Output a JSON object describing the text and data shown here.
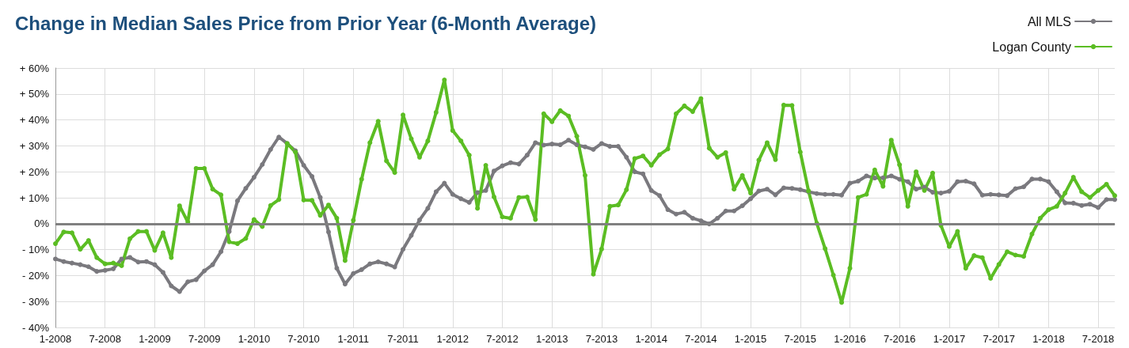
{
  "chart_data": {
    "type": "line",
    "title": "Change in Median Sales Price from Prior Year",
    "subtitle": "(6-Month Average)",
    "categories": [
      "1-2008",
      null,
      null,
      null,
      null,
      null,
      "7-2008",
      null,
      null,
      null,
      null,
      null,
      "1-2009",
      null,
      null,
      null,
      null,
      null,
      "7-2009",
      null,
      null,
      null,
      null,
      null,
      "1-2010",
      null,
      null,
      null,
      null,
      null,
      "7-2010",
      null,
      null,
      null,
      null,
      null,
      "1-2011",
      null,
      null,
      null,
      null,
      null,
      "7-2011",
      null,
      null,
      null,
      null,
      null,
      "1-2012",
      null,
      null,
      null,
      null,
      null,
      "7-2012",
      null,
      null,
      null,
      null,
      null,
      "1-2013",
      null,
      null,
      null,
      null,
      null,
      "7-2013",
      null,
      null,
      null,
      null,
      null,
      "1-2014",
      null,
      null,
      null,
      null,
      null,
      "7-2014",
      null,
      null,
      null,
      null,
      null,
      "1-2015",
      null,
      null,
      null,
      null,
      null,
      "7-2015",
      null,
      null,
      null,
      null,
      null,
      "1-2016",
      null,
      null,
      null,
      null,
      null,
      "7-2016",
      null,
      null,
      null,
      null,
      null,
      "1-2017",
      null,
      null,
      null,
      null,
      null,
      "7-2017",
      null,
      null,
      null,
      null,
      null,
      "1-2018",
      null,
      null,
      null,
      null,
      null,
      "7-2018",
      null,
      null
    ],
    "series": [
      {
        "name": "All MLS",
        "color": "#7a797e",
        "values": [
          -13.6,
          -14.6,
          -15.2,
          -15.8,
          -16.6,
          -18.4,
          -18,
          -17.4,
          -13.6,
          -13,
          -14.8,
          -14.6,
          -15.8,
          -18.8,
          -24,
          -26.2,
          -22.4,
          -21.6,
          -18.2,
          -15.8,
          -10.8,
          -3,
          8.8,
          13.6,
          17.9,
          22.8,
          28.6,
          33.4,
          30.9,
          28.1,
          22.5,
          18.2,
          10.1,
          -3.2,
          -17.2,
          -23.3,
          -19.2,
          -17.7,
          -15.5,
          -14.7,
          -15.5,
          -16.7,
          -9.9,
          -4.5,
          1.4,
          5.9,
          12.3,
          15.6,
          11.3,
          9.6,
          8.2,
          12,
          12.8,
          20.3,
          22.3,
          23.5,
          23,
          26.4,
          31.2,
          30.3,
          30.7,
          30.4,
          32.2,
          30.4,
          29.6,
          28.6,
          30.9,
          29.8,
          29.8,
          25.6,
          20,
          19.2,
          12.8,
          10.8,
          5.4,
          3.7,
          4.4,
          2.1,
          1.1,
          -0.1,
          2.1,
          4.9,
          4.9,
          6.9,
          9.6,
          12.6,
          13.3,
          11.1,
          13.8,
          13.6,
          13.1,
          12.3,
          11.6,
          11.3,
          11.3,
          11,
          15.6,
          16.4,
          18.4,
          17.6,
          17.7,
          18.4,
          17.1,
          16.2,
          13.3,
          14.1,
          12.1,
          11.8,
          12.5,
          16.2,
          16.4,
          15.4,
          11,
          11.3,
          11.1,
          10.8,
          13.5,
          14.2,
          17.2,
          17.2,
          16.2,
          12.3,
          8,
          7.9,
          7,
          7.5,
          6.2,
          9.3,
          9.3
        ]
      },
      {
        "name": "Logan County",
        "color": "#5bbd23",
        "values": [
          -7.7,
          -3.2,
          -3.5,
          -9.9,
          -6.5,
          -13.1,
          -15.5,
          -15.2,
          -16.2,
          -5.8,
          -3,
          -3,
          -10.3,
          -3.5,
          -13.1,
          6.9,
          0.6,
          21.3,
          21.3,
          13.3,
          11.1,
          -7,
          -7.7,
          -5.7,
          1.6,
          -1.1,
          7,
          9.3,
          30.9,
          27.6,
          9.1,
          9,
          3.2,
          7.2,
          2.1,
          -14.2,
          1.3,
          17.1,
          31.2,
          39.5,
          24.2,
          19.7,
          41.9,
          32.7,
          25.6,
          31.9,
          42.9,
          55.4,
          35.9,
          31.9,
          26.4,
          5.9,
          22.5,
          10.3,
          2.6,
          2.1,
          10.1,
          10.3,
          1.6,
          42.4,
          39.3,
          43.6,
          41.5,
          33.7,
          18.6,
          -19.5,
          -9.8,
          6.7,
          7.2,
          13.1,
          25.1,
          26.1,
          22.5,
          26.6,
          28.8,
          42.4,
          45.4,
          43.2,
          48.2,
          29.1,
          25.6,
          27.4,
          13.3,
          18.6,
          11.8,
          24.5,
          31.2,
          24.7,
          45.7,
          45.6,
          27.6,
          12.6,
          0.1,
          -9.6,
          -19.8,
          -30.4,
          -17.2,
          10.1,
          11.3,
          20.7,
          14.4,
          32.2,
          22.7,
          6.7,
          20,
          12.8,
          19.5,
          -0.7,
          -8.8,
          -3,
          -17.2,
          -12.3,
          -13.1,
          -21.1,
          -15.7,
          -10.8,
          -12.1,
          -12.6,
          -4,
          2.1,
          5.4,
          6.7,
          11.8,
          17.9,
          12.3,
          10.1,
          12.8,
          15.2,
          10.8
        ]
      }
    ],
    "ylim": [
      -40,
      60
    ],
    "yticks": [
      {
        "value": -40,
        "label": "- 40%"
      },
      {
        "value": -30,
        "label": "- 30%"
      },
      {
        "value": -20,
        "label": "- 20%"
      },
      {
        "value": -10,
        "label": "- 10%"
      },
      {
        "value": 0,
        "label": "0%"
      },
      {
        "value": 10,
        "label": "+ 10%"
      },
      {
        "value": 20,
        "label": "+ 20%"
      },
      {
        "value": 30,
        "label": "+ 30%"
      },
      {
        "value": 40,
        "label": "+ 40%"
      },
      {
        "value": 50,
        "label": "+ 50%"
      },
      {
        "value": 60,
        "label": "+ 60%"
      }
    ],
    "ref_lines": [
      {
        "axis": "y",
        "value": 0,
        "color": "#808080"
      }
    ],
    "grid": true,
    "legend": "top right",
    "marker": "circle",
    "line_style": "solid"
  }
}
